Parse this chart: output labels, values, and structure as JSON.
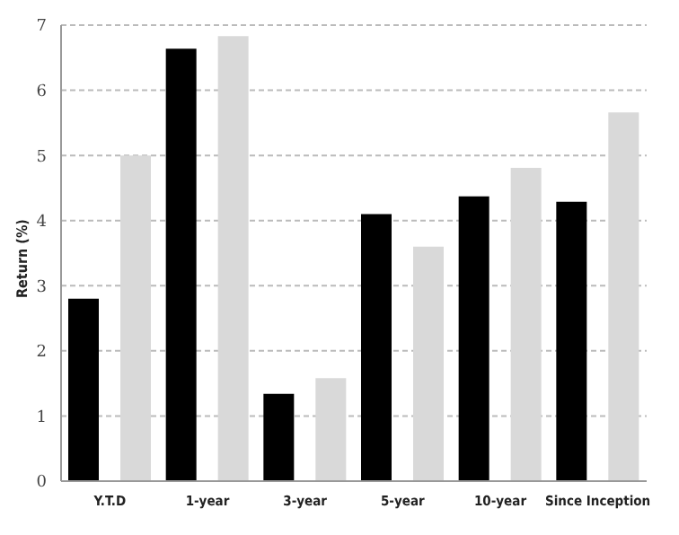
{
  "chart_data": {
    "type": "bar",
    "ylabel": "Return (%)",
    "categories": [
      "Y.T.D",
      "1-year",
      "3-year",
      "5-year",
      "10-year",
      "Since Inception"
    ],
    "series": [
      {
        "color": "#000000",
        "values": [
          2.8,
          6.64,
          1.34,
          4.1,
          4.37,
          4.29
        ]
      },
      {
        "color": "#d9d9d9",
        "values": [
          5.0,
          6.83,
          1.58,
          3.6,
          4.81,
          5.66
        ]
      }
    ],
    "ylim": [
      0,
      7
    ],
    "yticks": [
      0,
      1,
      2,
      3,
      4,
      5,
      6,
      7
    ],
    "grid": "y",
    "legend": false
  }
}
